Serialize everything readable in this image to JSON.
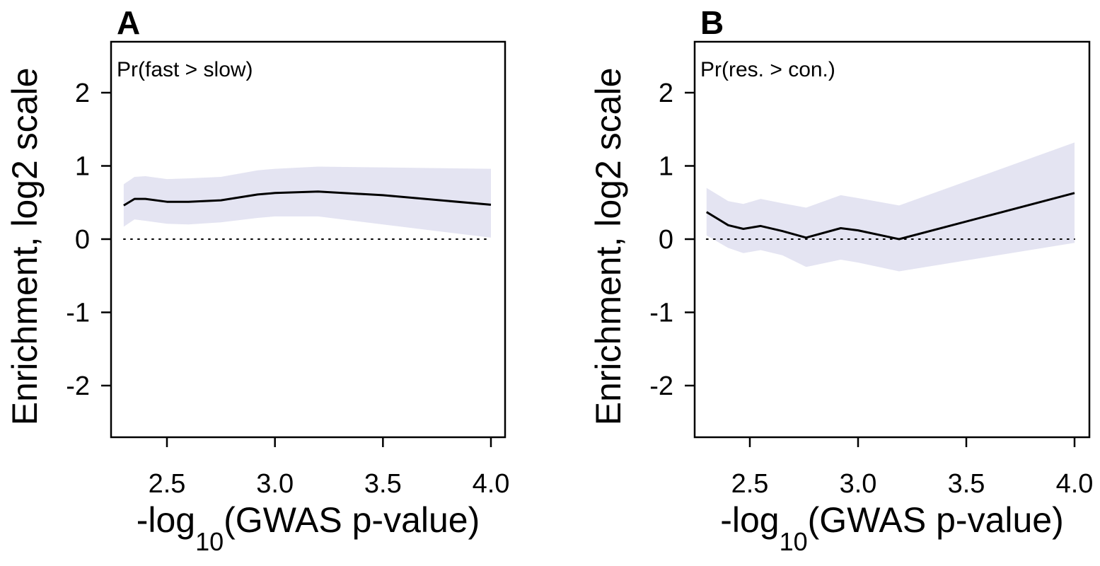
{
  "chart_data": [
    {
      "type": "line",
      "panel_label": "A",
      "annotation": "Pr(fast > slow)",
      "ylabel": "Enrichment, log2 scale",
      "xlabel_prefix": "-log",
      "xlabel_subscript": "10",
      "xlabel_suffix": "(GWAS p-value)",
      "xlim": [
        2.3,
        4.0
      ],
      "ylim": [
        -2.7,
        2.7
      ],
      "xticks": [
        "2.5",
        "3.0",
        "3.5",
        "4.0"
      ],
      "yticks": [
        "2",
        "1",
        "0",
        "-1",
        "-2"
      ],
      "reference_line": 0,
      "band_color": "#e4e4f2",
      "line_color": "#000000",
      "series": [
        {
          "x": [
            2.3,
            2.35,
            2.4,
            2.5,
            2.6,
            2.75,
            2.92,
            3.0,
            3.2,
            3.5,
            4.0
          ],
          "y": [
            0.46,
            0.55,
            0.55,
            0.51,
            0.51,
            0.53,
            0.61,
            0.63,
            0.65,
            0.6,
            0.47
          ],
          "lower": [
            0.17,
            0.27,
            0.25,
            0.21,
            0.2,
            0.23,
            0.29,
            0.31,
            0.31,
            0.2,
            0.02
          ],
          "upper": [
            0.75,
            0.85,
            0.86,
            0.82,
            0.83,
            0.85,
            0.94,
            0.96,
            0.99,
            0.98,
            0.96
          ]
        }
      ]
    },
    {
      "type": "line",
      "panel_label": "B",
      "annotation": "Pr(res. > con.)",
      "ylabel": "Enrichment, log2 scale",
      "xlabel_prefix": "-log",
      "xlabel_subscript": "10",
      "xlabel_suffix": "(GWAS p-value)",
      "xlim": [
        2.3,
        4.0
      ],
      "ylim": [
        -2.7,
        2.7
      ],
      "xticks": [
        "2.5",
        "3.0",
        "3.5",
        "4.0"
      ],
      "yticks": [
        "2",
        "1",
        "0",
        "-1",
        "-2"
      ],
      "reference_line": 0,
      "band_color": "#e4e4f2",
      "line_color": "#000000",
      "series": [
        {
          "x": [
            2.3,
            2.4,
            2.47,
            2.55,
            2.65,
            2.76,
            2.92,
            3.0,
            3.19,
            4.0
          ],
          "y": [
            0.37,
            0.19,
            0.14,
            0.18,
            0.11,
            0.02,
            0.15,
            0.12,
            0.0,
            0.63
          ],
          "lower": [
            0.05,
            -0.12,
            -0.19,
            -0.15,
            -0.22,
            -0.38,
            -0.28,
            -0.32,
            -0.44,
            -0.05
          ],
          "upper": [
            0.7,
            0.52,
            0.48,
            0.55,
            0.49,
            0.43,
            0.6,
            0.56,
            0.46,
            1.32
          ]
        }
      ]
    }
  ]
}
